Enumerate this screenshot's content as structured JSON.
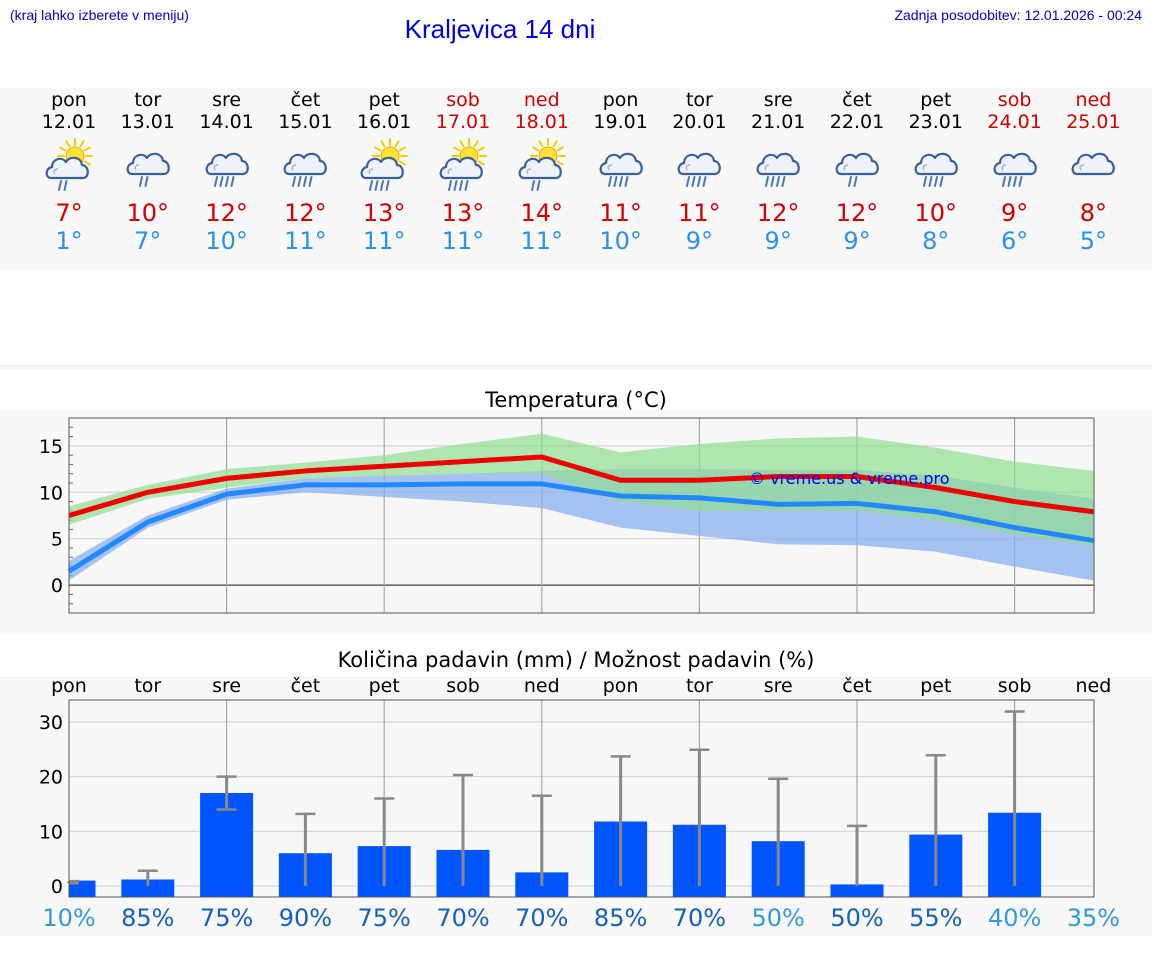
{
  "header": {
    "location_note": "(kraj lahko izberete v meniju)",
    "title": "Kraljevica 14 dni",
    "last_update": "Zadnja posodobitev: 12.01.2026 - 00:24"
  },
  "colors": {
    "max": "#d10000",
    "min": "#2a92e8",
    "weekend": "#d10000",
    "bar": "#0055ff"
  },
  "days": [
    {
      "name": "pon",
      "date": "12.01",
      "icon": "sun-cloud-rain-icon",
      "tmax": "7°",
      "tmin": "1°",
      "weekend": false
    },
    {
      "name": "tor",
      "date": "13.01",
      "icon": "cloud-rain-icon",
      "tmax": "10°",
      "tmin": "7°",
      "weekend": false
    },
    {
      "name": "sre",
      "date": "14.01",
      "icon": "cloud-heavy-rain-icon",
      "tmax": "12°",
      "tmin": "10°",
      "weekend": false
    },
    {
      "name": "čet",
      "date": "15.01",
      "icon": "cloud-heavy-rain-icon",
      "tmax": "12°",
      "tmin": "11°",
      "weekend": false
    },
    {
      "name": "pet",
      "date": "16.01",
      "icon": "sun-cloud-heavy-rain-icon",
      "tmax": "13°",
      "tmin": "11°",
      "weekend": false
    },
    {
      "name": "sob",
      "date": "17.01",
      "icon": "sun-cloud-heavy-rain-icon",
      "tmax": "13°",
      "tmin": "11°",
      "weekend": true
    },
    {
      "name": "ned",
      "date": "18.01",
      "icon": "sun-cloud-rain-icon",
      "tmax": "14°",
      "tmin": "11°",
      "weekend": true
    },
    {
      "name": "pon",
      "date": "19.01",
      "icon": "cloud-heavy-rain-icon",
      "tmax": "11°",
      "tmin": "10°",
      "weekend": false
    },
    {
      "name": "tor",
      "date": "20.01",
      "icon": "cloud-heavy-rain-icon",
      "tmax": "11°",
      "tmin": "9°",
      "weekend": false
    },
    {
      "name": "sre",
      "date": "21.01",
      "icon": "cloud-heavy-rain-icon",
      "tmax": "12°",
      "tmin": "9°",
      "weekend": false
    },
    {
      "name": "čet",
      "date": "22.01",
      "icon": "cloud-rain-icon",
      "tmax": "12°",
      "tmin": "9°",
      "weekend": false
    },
    {
      "name": "pet",
      "date": "23.01",
      "icon": "cloud-heavy-rain-icon",
      "tmax": "10°",
      "tmin": "8°",
      "weekend": false
    },
    {
      "name": "sob",
      "date": "24.01",
      "icon": "cloud-heavy-rain-icon",
      "tmax": "9°",
      "tmin": "6°",
      "weekend": true
    },
    {
      "name": "ned",
      "date": "25.01",
      "icon": "cloud-icon",
      "tmax": "8°",
      "tmin": "5°",
      "weekend": true
    }
  ],
  "chart_data": [
    {
      "type": "line",
      "title": "Temperatura (°C)",
      "watermark": "© vreme.us & vreme.pro",
      "x": [
        0,
        1,
        2,
        3,
        4,
        5,
        6,
        7,
        8,
        9,
        10,
        11,
        12,
        13
      ],
      "ylim": [
        -3,
        18
      ],
      "yticks": [
        0,
        5,
        10,
        15
      ],
      "grid": true,
      "series": [
        {
          "name": "max",
          "color": "#ee0000",
          "values": [
            7.5,
            10.0,
            11.5,
            12.3,
            12.8,
            13.3,
            13.8,
            11.3,
            11.3,
            11.7,
            11.7,
            10.5,
            9.0,
            7.9
          ]
        },
        {
          "name": "min",
          "color": "#2288ff",
          "values": [
            1.5,
            6.8,
            9.8,
            10.8,
            10.8,
            10.9,
            10.9,
            9.6,
            9.4,
            8.7,
            8.8,
            7.9,
            6.2,
            4.8
          ]
        },
        {
          "name": "max-range-high",
          "color": "#90dd90",
          "values": [
            8.5,
            10.8,
            12.5,
            13.2,
            14.0,
            15.2,
            16.3,
            14.3,
            15.2,
            15.8,
            16.0,
            14.8,
            13.3,
            12.3
          ]
        },
        {
          "name": "max-range-low",
          "color": "#90dd90",
          "values": [
            6.5,
            9.3,
            10.5,
            11.5,
            11.8,
            12.0,
            12.0,
            9.0,
            8.0,
            8.0,
            8.0,
            7.0,
            5.5,
            4.2
          ]
        },
        {
          "name": "min-range-high",
          "color": "#8ab0ee",
          "values": [
            2.6,
            7.5,
            10.4,
            11.5,
            11.8,
            12.0,
            12.3,
            12.5,
            12.5,
            12.4,
            12.4,
            11.8,
            10.5,
            9.3
          ]
        },
        {
          "name": "min-range-low",
          "color": "#8ab0ee",
          "values": [
            0.5,
            6.2,
            9.2,
            10.0,
            9.5,
            9.0,
            8.3,
            6.2,
            5.3,
            4.4,
            4.3,
            3.6,
            2.0,
            0.5
          ]
        }
      ]
    },
    {
      "type": "bar",
      "title": "Količina padavin (mm) / Možnost padavin (%)",
      "categories": [
        "pon",
        "tor",
        "sre",
        "čet",
        "pet",
        "sob",
        "ned",
        "pon",
        "tor",
        "sre",
        "čet",
        "pet",
        "sob",
        "ned"
      ],
      "ylim": [
        -2,
        34
      ],
      "yticks": [
        0,
        10,
        20,
        30
      ],
      "series": [
        {
          "name": "padavine_mm",
          "values": [
            1.0,
            1.2,
            17.0,
            6.0,
            7.3,
            6.6,
            2.5,
            11.8,
            11.2,
            8.2,
            0.3,
            9.4,
            13.4,
            0.0
          ]
        },
        {
          "name": "razpon_min",
          "values": [
            0.5,
            0.0,
            14.0,
            0.0,
            0.0,
            0.0,
            0.0,
            0.0,
            0.0,
            0.0,
            0.0,
            0.0,
            0.0,
            0.0
          ]
        },
        {
          "name": "razpon_max",
          "values": [
            0.9,
            2.8,
            20.0,
            13.2,
            16.0,
            20.3,
            16.5,
            23.7,
            24.9,
            19.6,
            11.0,
            23.9,
            31.9,
            0.0
          ]
        }
      ],
      "probabilities": [
        "10%",
        "85%",
        "75%",
        "90%",
        "75%",
        "70%",
        "70%",
        "85%",
        "70%",
        "50%",
        "50%",
        "55%",
        "40%",
        "35%"
      ],
      "probability_colors": [
        "#3399dd",
        "#1560bd",
        "#1560bd",
        "#1560bd",
        "#1560bd",
        "#1560bd",
        "#1560bd",
        "#1560bd",
        "#1560bd",
        "#3399dd",
        "#1560bd",
        "#1560bd",
        "#3399dd",
        "#3399dd"
      ]
    }
  ]
}
